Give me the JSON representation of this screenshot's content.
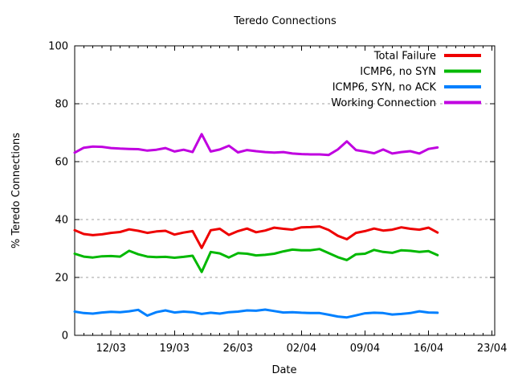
{
  "title": "Teredo Connections",
  "colors": {
    "background": "#ffffff",
    "axis": "#000000",
    "grid": "#a0a0a0",
    "text": "#000000"
  },
  "chart_data": {
    "type": "line",
    "title": "Teredo Connections",
    "xlabel": "Date",
    "ylabel": "% Teredo Connections",
    "ylim": [
      0,
      100
    ],
    "y_ticks": [
      0,
      20,
      40,
      60,
      80,
      100
    ],
    "x_tick_labels": [
      "12/03",
      "19/03",
      "26/03",
      "02/04",
      "09/04",
      "16/04",
      "23/04"
    ],
    "x_tick_days": [
      4,
      11,
      18,
      25,
      32,
      39,
      46
    ],
    "x_total_days": 46.3,
    "grid": "horizontal-dashed-at-y-ticks",
    "legend_position": "top-right-inside",
    "dates": [
      "08/03",
      "09/03",
      "10/03",
      "11/03",
      "12/03",
      "13/03",
      "14/03",
      "15/03",
      "16/03",
      "17/03",
      "18/03",
      "19/03",
      "20/03",
      "21/03",
      "22/03",
      "23/03",
      "24/03",
      "25/03",
      "26/03",
      "27/03",
      "28/03",
      "29/03",
      "30/03",
      "31/03",
      "01/04",
      "02/04",
      "03/04",
      "04/04",
      "05/04",
      "06/04",
      "07/04",
      "08/04",
      "09/04",
      "10/04",
      "11/04",
      "12/04",
      "13/04",
      "14/04",
      "15/04",
      "16/04",
      "17/04"
    ],
    "series": [
      {
        "name": "Total Failure",
        "color": "#ee0000",
        "values": [
          36.3,
          35.0,
          34.6,
          34.9,
          35.4,
          35.7,
          36.6,
          36.1,
          35.4,
          35.9,
          36.1,
          34.8,
          35.5,
          36.0,
          30.2,
          36.3,
          36.8,
          34.7,
          36.0,
          36.9,
          35.6,
          36.2,
          37.2,
          36.8,
          36.5,
          37.3,
          37.4,
          37.6,
          36.4,
          34.4,
          33.2,
          35.4,
          36.0,
          36.9,
          36.2,
          36.5,
          37.3,
          36.8,
          36.5,
          37.2,
          35.5
        ]
      },
      {
        "name": "ICMP6, no SYN",
        "color": "#00b800",
        "values": [
          28.2,
          27.2,
          26.9,
          27.3,
          27.4,
          27.2,
          29.2,
          28.0,
          27.2,
          27.0,
          27.1,
          26.8,
          27.1,
          27.5,
          21.9,
          28.8,
          28.3,
          26.9,
          28.4,
          28.2,
          27.6,
          27.8,
          28.2,
          29.0,
          29.6,
          29.4,
          29.4,
          29.8,
          28.4,
          27.0,
          26.0,
          28.0,
          28.2,
          29.5,
          28.8,
          28.5,
          29.4,
          29.2,
          28.8,
          29.1,
          27.7
        ]
      },
      {
        "name": "ICMP6, SYN, no ACK",
        "color": "#0080ff",
        "values": [
          8.2,
          7.7,
          7.5,
          7.9,
          8.1,
          8.0,
          8.3,
          8.8,
          6.8,
          8.0,
          8.6,
          7.9,
          8.2,
          8.0,
          7.4,
          7.8,
          7.5,
          8.0,
          8.2,
          8.6,
          8.5,
          8.9,
          8.4,
          7.9,
          8.0,
          7.8,
          7.7,
          7.7,
          7.1,
          6.5,
          6.2,
          6.9,
          7.6,
          7.8,
          7.7,
          7.2,
          7.4,
          7.7,
          8.3,
          7.9,
          7.8
        ]
      },
      {
        "name": "Working Connection",
        "color": "#c000e0",
        "values": [
          63.1,
          64.8,
          65.2,
          65.1,
          64.7,
          64.5,
          64.4,
          64.3,
          63.8,
          64.1,
          64.7,
          63.5,
          64.1,
          63.3,
          69.5,
          63.5,
          64.2,
          65.5,
          63.2,
          64.0,
          63.6,
          63.3,
          63.1,
          63.3,
          62.8,
          62.6,
          62.5,
          62.5,
          62.3,
          64.2,
          67.0,
          64.0,
          63.5,
          62.9,
          64.2,
          62.8,
          63.3,
          63.6,
          62.8,
          64.4,
          64.9
        ]
      }
    ]
  }
}
